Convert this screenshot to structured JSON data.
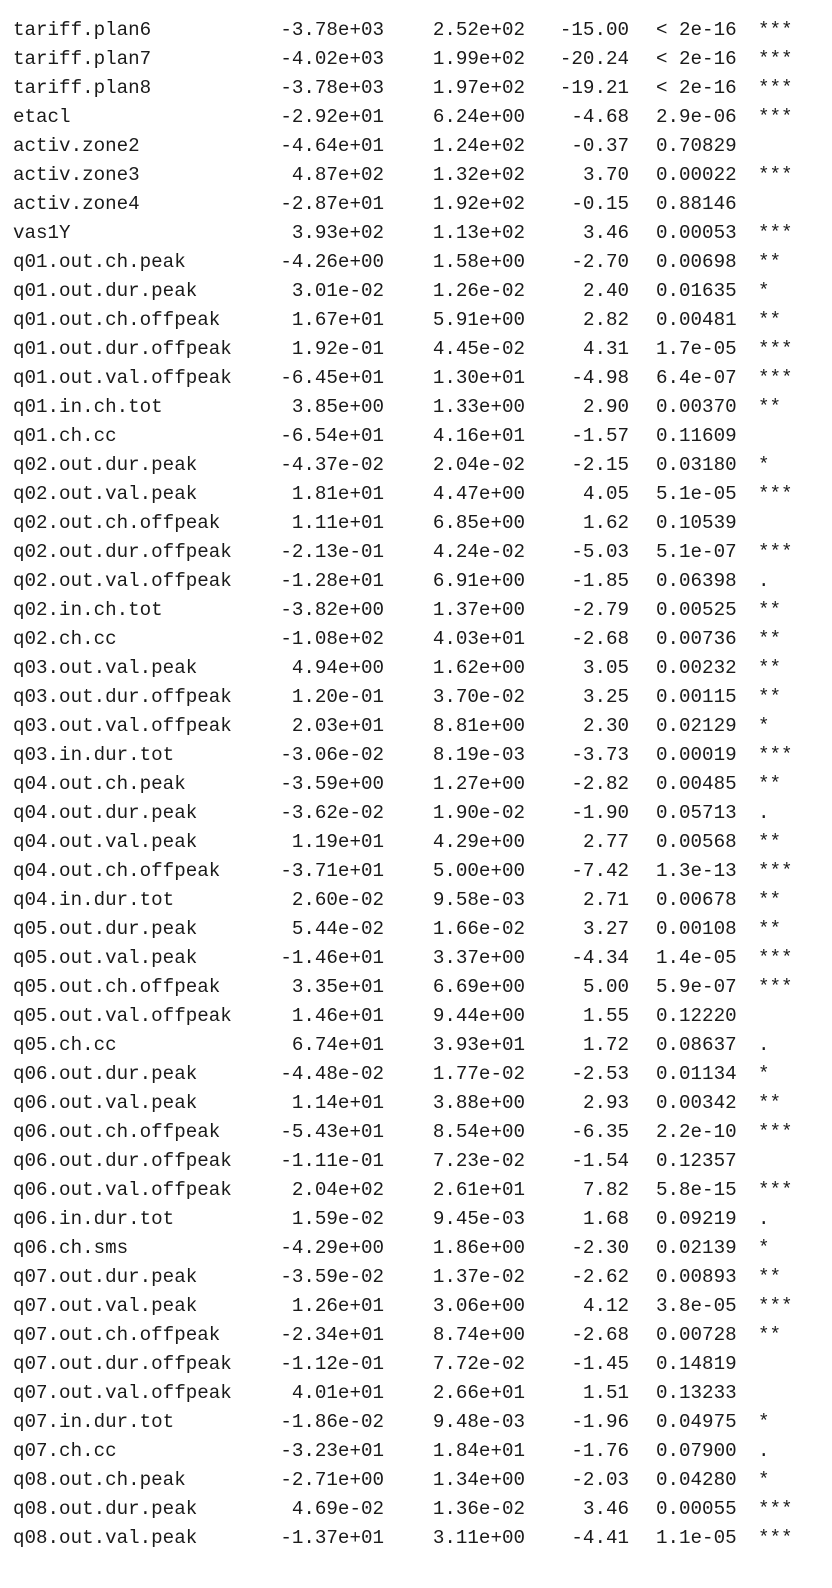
{
  "rows": [
    {
      "term": "tariff.plan6",
      "estimate": "-3.78e+03",
      "std_error": "2.52e+02",
      "t_value": "-15.00",
      "p_value": "< 2e-16",
      "signif": "***"
    },
    {
      "term": "tariff.plan7",
      "estimate": "-4.02e+03",
      "std_error": "1.99e+02",
      "t_value": "-20.24",
      "p_value": "< 2e-16",
      "signif": "***"
    },
    {
      "term": "tariff.plan8",
      "estimate": "-3.78e+03",
      "std_error": "1.97e+02",
      "t_value": "-19.21",
      "p_value": "< 2e-16",
      "signif": "***"
    },
    {
      "term": "etacl",
      "estimate": "-2.92e+01",
      "std_error": "6.24e+00",
      "t_value": "-4.68",
      "p_value": "2.9e-06",
      "signif": "***"
    },
    {
      "term": "activ.zone2",
      "estimate": "-4.64e+01",
      "std_error": "1.24e+02",
      "t_value": "-0.37",
      "p_value": "0.70829",
      "signif": ""
    },
    {
      "term": "activ.zone3",
      "estimate": "4.87e+02",
      "std_error": "1.32e+02",
      "t_value": "3.70",
      "p_value": "0.00022",
      "signif": "***"
    },
    {
      "term": "activ.zone4",
      "estimate": "-2.87e+01",
      "std_error": "1.92e+02",
      "t_value": "-0.15",
      "p_value": "0.88146",
      "signif": ""
    },
    {
      "term": "vas1Y",
      "estimate": "3.93e+02",
      "std_error": "1.13e+02",
      "t_value": "3.46",
      "p_value": "0.00053",
      "signif": "***"
    },
    {
      "term": "q01.out.ch.peak",
      "estimate": "-4.26e+00",
      "std_error": "1.58e+00",
      "t_value": "-2.70",
      "p_value": "0.00698",
      "signif": "**"
    },
    {
      "term": "q01.out.dur.peak",
      "estimate": "3.01e-02",
      "std_error": "1.26e-02",
      "t_value": "2.40",
      "p_value": "0.01635",
      "signif": "*"
    },
    {
      "term": "q01.out.ch.offpeak",
      "estimate": "1.67e+01",
      "std_error": "5.91e+00",
      "t_value": "2.82",
      "p_value": "0.00481",
      "signif": "**"
    },
    {
      "term": "q01.out.dur.offpeak",
      "estimate": "1.92e-01",
      "std_error": "4.45e-02",
      "t_value": "4.31",
      "p_value": "1.7e-05",
      "signif": "***"
    },
    {
      "term": "q01.out.val.offpeak",
      "estimate": "-6.45e+01",
      "std_error": "1.30e+01",
      "t_value": "-4.98",
      "p_value": "6.4e-07",
      "signif": "***"
    },
    {
      "term": "q01.in.ch.tot",
      "estimate": "3.85e+00",
      "std_error": "1.33e+00",
      "t_value": "2.90",
      "p_value": "0.00370",
      "signif": "**"
    },
    {
      "term": "q01.ch.cc",
      "estimate": "-6.54e+01",
      "std_error": "4.16e+01",
      "t_value": "-1.57",
      "p_value": "0.11609",
      "signif": ""
    },
    {
      "term": "q02.out.dur.peak",
      "estimate": "-4.37e-02",
      "std_error": "2.04e-02",
      "t_value": "-2.15",
      "p_value": "0.03180",
      "signif": "*"
    },
    {
      "term": "q02.out.val.peak",
      "estimate": "1.81e+01",
      "std_error": "4.47e+00",
      "t_value": "4.05",
      "p_value": "5.1e-05",
      "signif": "***"
    },
    {
      "term": "q02.out.ch.offpeak",
      "estimate": "1.11e+01",
      "std_error": "6.85e+00",
      "t_value": "1.62",
      "p_value": "0.10539",
      "signif": ""
    },
    {
      "term": "q02.out.dur.offpeak",
      "estimate": "-2.13e-01",
      "std_error": "4.24e-02",
      "t_value": "-5.03",
      "p_value": "5.1e-07",
      "signif": "***"
    },
    {
      "term": "q02.out.val.offpeak",
      "estimate": "-1.28e+01",
      "std_error": "6.91e+00",
      "t_value": "-1.85",
      "p_value": "0.06398",
      "signif": "."
    },
    {
      "term": "q02.in.ch.tot",
      "estimate": "-3.82e+00",
      "std_error": "1.37e+00",
      "t_value": "-2.79",
      "p_value": "0.00525",
      "signif": "**"
    },
    {
      "term": "q02.ch.cc",
      "estimate": "-1.08e+02",
      "std_error": "4.03e+01",
      "t_value": "-2.68",
      "p_value": "0.00736",
      "signif": "**"
    },
    {
      "term": "q03.out.val.peak",
      "estimate": "4.94e+00",
      "std_error": "1.62e+00",
      "t_value": "3.05",
      "p_value": "0.00232",
      "signif": "**"
    },
    {
      "term": "q03.out.dur.offpeak",
      "estimate": "1.20e-01",
      "std_error": "3.70e-02",
      "t_value": "3.25",
      "p_value": "0.00115",
      "signif": "**"
    },
    {
      "term": "q03.out.val.offpeak",
      "estimate": "2.03e+01",
      "std_error": "8.81e+00",
      "t_value": "2.30",
      "p_value": "0.02129",
      "signif": "*"
    },
    {
      "term": "q03.in.dur.tot",
      "estimate": "-3.06e-02",
      "std_error": "8.19e-03",
      "t_value": "-3.73",
      "p_value": "0.00019",
      "signif": "***"
    },
    {
      "term": "q04.out.ch.peak",
      "estimate": "-3.59e+00",
      "std_error": "1.27e+00",
      "t_value": "-2.82",
      "p_value": "0.00485",
      "signif": "**"
    },
    {
      "term": "q04.out.dur.peak",
      "estimate": "-3.62e-02",
      "std_error": "1.90e-02",
      "t_value": "-1.90",
      "p_value": "0.05713",
      "signif": "."
    },
    {
      "term": "q04.out.val.peak",
      "estimate": "1.19e+01",
      "std_error": "4.29e+00",
      "t_value": "2.77",
      "p_value": "0.00568",
      "signif": "**"
    },
    {
      "term": "q04.out.ch.offpeak",
      "estimate": "-3.71e+01",
      "std_error": "5.00e+00",
      "t_value": "-7.42",
      "p_value": "1.3e-13",
      "signif": "***"
    },
    {
      "term": "q04.in.dur.tot",
      "estimate": "2.60e-02",
      "std_error": "9.58e-03",
      "t_value": "2.71",
      "p_value": "0.00678",
      "signif": "**"
    },
    {
      "term": "q05.out.dur.peak",
      "estimate": "5.44e-02",
      "std_error": "1.66e-02",
      "t_value": "3.27",
      "p_value": "0.00108",
      "signif": "**"
    },
    {
      "term": "q05.out.val.peak",
      "estimate": "-1.46e+01",
      "std_error": "3.37e+00",
      "t_value": "-4.34",
      "p_value": "1.4e-05",
      "signif": "***"
    },
    {
      "term": "q05.out.ch.offpeak",
      "estimate": "3.35e+01",
      "std_error": "6.69e+00",
      "t_value": "5.00",
      "p_value": "5.9e-07",
      "signif": "***"
    },
    {
      "term": "q05.out.val.offpeak",
      "estimate": "1.46e+01",
      "std_error": "9.44e+00",
      "t_value": "1.55",
      "p_value": "0.12220",
      "signif": ""
    },
    {
      "term": "q05.ch.cc",
      "estimate": "6.74e+01",
      "std_error": "3.93e+01",
      "t_value": "1.72",
      "p_value": "0.08637",
      "signif": "."
    },
    {
      "term": "q06.out.dur.peak",
      "estimate": "-4.48e-02",
      "std_error": "1.77e-02",
      "t_value": "-2.53",
      "p_value": "0.01134",
      "signif": "*"
    },
    {
      "term": "q06.out.val.peak",
      "estimate": "1.14e+01",
      "std_error": "3.88e+00",
      "t_value": "2.93",
      "p_value": "0.00342",
      "signif": "**"
    },
    {
      "term": "q06.out.ch.offpeak",
      "estimate": "-5.43e+01",
      "std_error": "8.54e+00",
      "t_value": "-6.35",
      "p_value": "2.2e-10",
      "signif": "***"
    },
    {
      "term": "q06.out.dur.offpeak",
      "estimate": "-1.11e-01",
      "std_error": "7.23e-02",
      "t_value": "-1.54",
      "p_value": "0.12357",
      "signif": ""
    },
    {
      "term": "q06.out.val.offpeak",
      "estimate": "2.04e+02",
      "std_error": "2.61e+01",
      "t_value": "7.82",
      "p_value": "5.8e-15",
      "signif": "***"
    },
    {
      "term": "q06.in.dur.tot",
      "estimate": "1.59e-02",
      "std_error": "9.45e-03",
      "t_value": "1.68",
      "p_value": "0.09219",
      "signif": "."
    },
    {
      "term": "q06.ch.sms",
      "estimate": "-4.29e+00",
      "std_error": "1.86e+00",
      "t_value": "-2.30",
      "p_value": "0.02139",
      "signif": "*"
    },
    {
      "term": "q07.out.dur.peak",
      "estimate": "-3.59e-02",
      "std_error": "1.37e-02",
      "t_value": "-2.62",
      "p_value": "0.00893",
      "signif": "**"
    },
    {
      "term": "q07.out.val.peak",
      "estimate": "1.26e+01",
      "std_error": "3.06e+00",
      "t_value": "4.12",
      "p_value": "3.8e-05",
      "signif": "***"
    },
    {
      "term": "q07.out.ch.offpeak",
      "estimate": "-2.34e+01",
      "std_error": "8.74e+00",
      "t_value": "-2.68",
      "p_value": "0.00728",
      "signif": "**"
    },
    {
      "term": "q07.out.dur.offpeak",
      "estimate": "-1.12e-01",
      "std_error": "7.72e-02",
      "t_value": "-1.45",
      "p_value": "0.14819",
      "signif": ""
    },
    {
      "term": "q07.out.val.offpeak",
      "estimate": "4.01e+01",
      "std_error": "2.66e+01",
      "t_value": "1.51",
      "p_value": "0.13233",
      "signif": ""
    },
    {
      "term": "q07.in.dur.tot",
      "estimate": "-1.86e-02",
      "std_error": "9.48e-03",
      "t_value": "-1.96",
      "p_value": "0.04975",
      "signif": "*"
    },
    {
      "term": "q07.ch.cc",
      "estimate": "-3.23e+01",
      "std_error": "1.84e+01",
      "t_value": "-1.76",
      "p_value": "0.07900",
      "signif": "."
    },
    {
      "term": "q08.out.ch.peak",
      "estimate": "-2.71e+00",
      "std_error": "1.34e+00",
      "t_value": "-2.03",
      "p_value": "0.04280",
      "signif": "*"
    },
    {
      "term": "q08.out.dur.peak",
      "estimate": "4.69e-02",
      "std_error": "1.36e-02",
      "t_value": "3.46",
      "p_value": "0.00055",
      "signif": "***"
    },
    {
      "term": "q08.out.val.peak",
      "estimate": "-1.37e+01",
      "std_error": "3.11e+00",
      "t_value": "-4.41",
      "p_value": "1.1e-05",
      "signif": "***"
    }
  ]
}
